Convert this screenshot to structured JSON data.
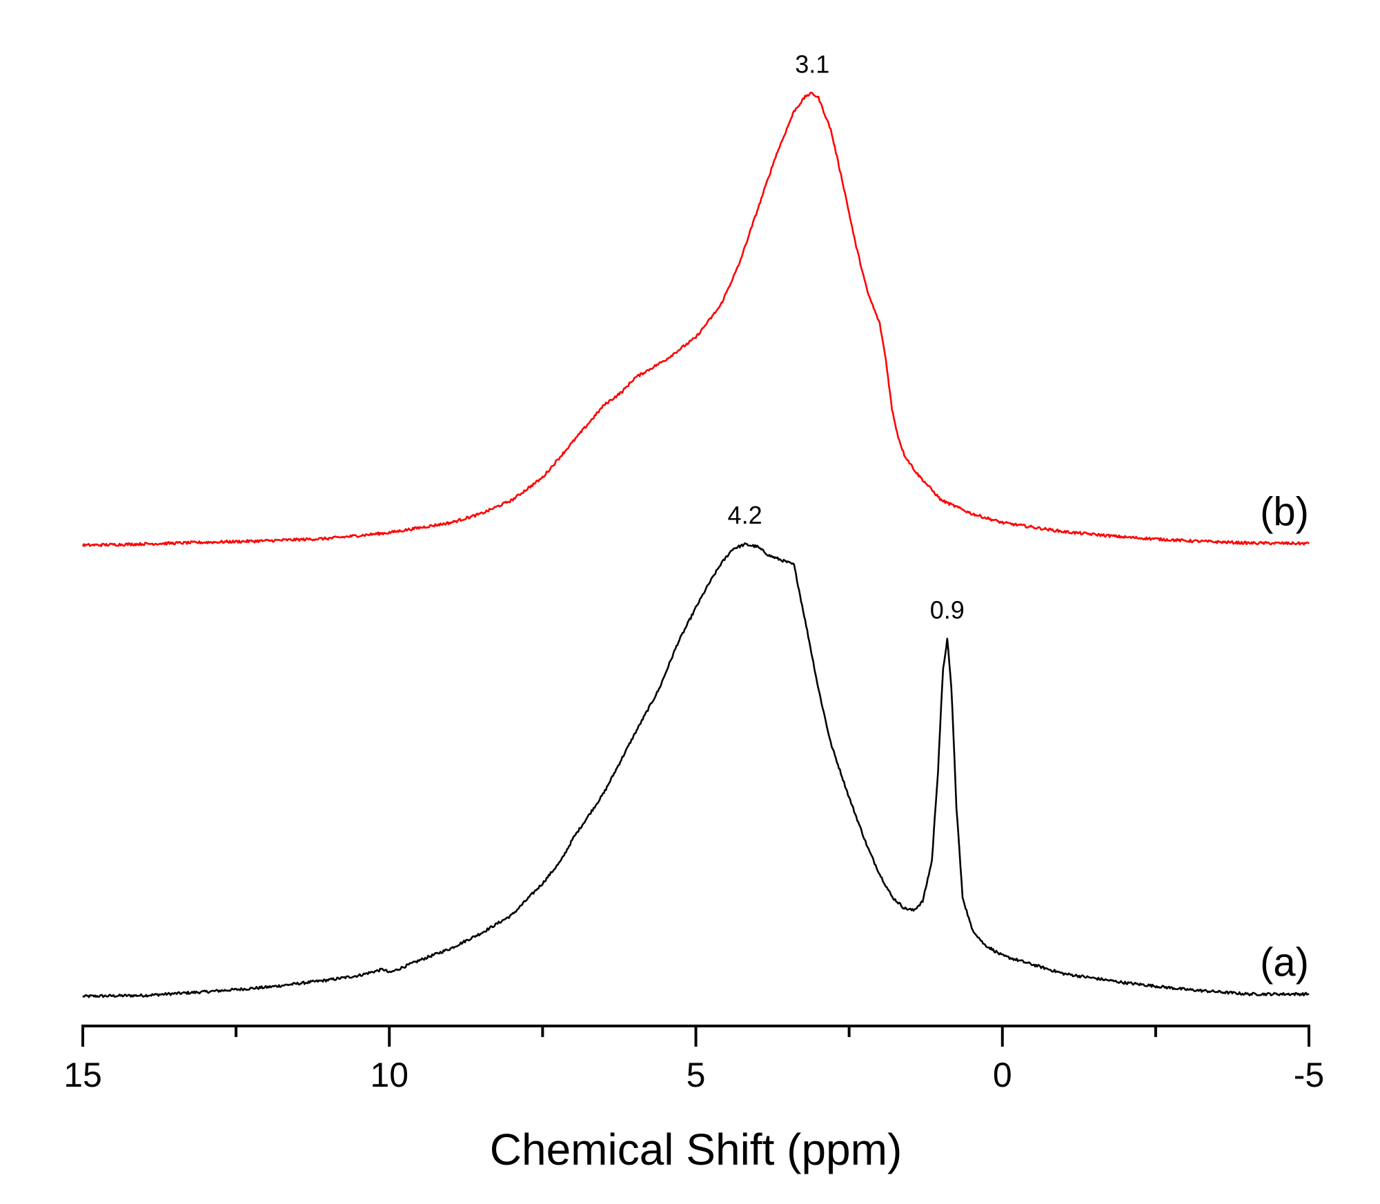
{
  "chart_data": {
    "type": "line",
    "title": "",
    "xlabel": "Chemical Shift (ppm)",
    "ylabel": "",
    "xlim": [
      15,
      -5
    ],
    "x_reversed": true,
    "grid": false,
    "x_ticks": [
      {
        "value": 15,
        "label": "15"
      },
      {
        "value": 10,
        "label": "10"
      },
      {
        "value": 5,
        "label": "5"
      },
      {
        "value": 0,
        "label": "0"
      },
      {
        "value": -5,
        "label": "-5"
      }
    ],
    "x_minor_ticks": [
      12.5,
      7.5,
      2.5,
      -2.5
    ],
    "series": [
      {
        "name": "(a)",
        "label": "(a)",
        "color": "#000000",
        "offset": 0,
        "peak_labels": [
          {
            "x": 4.2,
            "text": "4.2"
          },
          {
            "x": 0.9,
            "text": "0.9"
          }
        ],
        "x": [
          15,
          14,
          13,
          12,
          11,
          10.5,
          10.1,
          10,
          9.5,
          9,
          8.5,
          8,
          7.5,
          7.2,
          7,
          6.5,
          6,
          5.6,
          5.3,
          5,
          4.8,
          4.6,
          4.4,
          4.2,
          4.0,
          3.8,
          3.6,
          3.4,
          3.2,
          3.0,
          2.8,
          2.5,
          2.2,
          2.0,
          1.8,
          1.6,
          1.45,
          1.3,
          1.15,
          1.05,
          0.97,
          0.9,
          0.83,
          0.75,
          0.65,
          0.5,
          0.3,
          0,
          -0.5,
          -1,
          -2,
          -3,
          -4,
          -5
        ],
        "values": [
          0.0,
          0.002,
          0.01,
          0.02,
          0.036,
          0.046,
          0.06,
          0.052,
          0.08,
          0.106,
          0.14,
          0.18,
          0.25,
          0.3,
          0.35,
          0.45,
          0.58,
          0.68,
          0.78,
          0.86,
          0.91,
          0.955,
          0.99,
          1.0,
          0.995,
          0.975,
          0.965,
          0.955,
          0.82,
          0.68,
          0.56,
          0.44,
          0.33,
          0.27,
          0.22,
          0.195,
          0.19,
          0.21,
          0.3,
          0.5,
          0.72,
          0.79,
          0.68,
          0.42,
          0.22,
          0.15,
          0.115,
          0.09,
          0.07,
          0.05,
          0.03,
          0.015,
          0.005,
          0.005
        ]
      },
      {
        "name": "(b)",
        "label": "(b)",
        "color": "#ff0000",
        "offset": 0.998,
        "peak_labels": [
          {
            "x": 3.1,
            "text": "3.1"
          }
        ],
        "x": [
          15,
          14,
          12,
          11,
          10,
          9,
          8.5,
          8,
          7.5,
          7,
          6.5,
          6.2,
          6,
          5.5,
          5,
          4.6,
          4.3,
          4,
          3.7,
          3.4,
          3.2,
          3.1,
          3.0,
          2.8,
          2.6,
          2.4,
          2.2,
          2.0,
          1.9,
          1.8,
          1.7,
          1.6,
          1.4,
          1.2,
          1.0,
          0.5,
          0,
          -1,
          -2,
          -3,
          -4,
          -5
        ],
        "values": [
          0.0,
          0.003,
          0.01,
          0.015,
          0.028,
          0.05,
          0.07,
          0.1,
          0.15,
          0.23,
          0.31,
          0.34,
          0.37,
          0.41,
          0.46,
          0.53,
          0.62,
          0.74,
          0.86,
          0.96,
          0.995,
          1.0,
          0.99,
          0.92,
          0.8,
          0.67,
          0.56,
          0.49,
          0.41,
          0.3,
          0.24,
          0.2,
          0.16,
          0.13,
          0.1,
          0.07,
          0.05,
          0.03,
          0.018,
          0.01,
          0.005,
          0.004
        ]
      }
    ]
  }
}
